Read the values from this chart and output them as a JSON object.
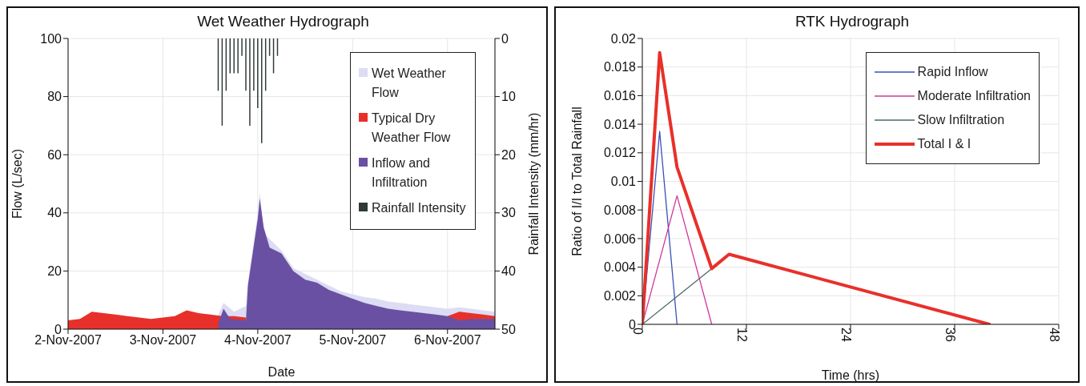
{
  "chart_data": [
    {
      "type": "area",
      "title": "Wet Weather Hydrograph",
      "xlabel": "Date",
      "ylabel": "Flow (L/sec)",
      "y2label": "Rainfall Intensity (mm/hr)",
      "xlim": [
        "2007-11-02T00:00",
        "2007-11-06T12:00"
      ],
      "xticks": [
        {
          "value": "2007-11-02",
          "label": "2-Nov-2007"
        },
        {
          "value": "2007-11-03",
          "label": "3-Nov-2007"
        },
        {
          "value": "2007-11-04",
          "label": "4-Nov-2007"
        },
        {
          "value": "2007-11-05",
          "label": "5-Nov-2007"
        },
        {
          "value": "2007-11-06",
          "label": "6-Nov-2007"
        }
      ],
      "ylim": [
        0,
        100
      ],
      "yticks": [
        0,
        20,
        40,
        60,
        80,
        100
      ],
      "y2lim": [
        50,
        0
      ],
      "y2ticks": [
        0,
        10,
        20,
        30,
        40,
        50
      ],
      "grid": true,
      "legend": "top right",
      "series": [
        {
          "name": "Wet Weather Flow",
          "color": "#dcdcf4",
          "x": [
            "2007-11-03T14:00",
            "2007-11-03T15:20",
            "2007-11-03T18:00",
            "2007-11-03T21:00",
            "2007-11-03T21:30",
            "2007-11-04T00:00",
            "2007-11-04T00:30",
            "2007-11-04T01:30",
            "2007-11-04T03:00",
            "2007-11-04T06:00",
            "2007-11-04T09:00",
            "2007-11-04T12:00",
            "2007-11-04T15:00",
            "2007-11-04T18:00",
            "2007-11-04T21:00",
            "2007-11-05T00:00",
            "2007-11-05T03:00",
            "2007-11-05T06:00",
            "2007-11-05T09:00",
            "2007-11-05T12:00",
            "2007-11-05T15:00",
            "2007-11-05T18:00",
            "2007-11-05T21:00",
            "2007-11-06T00:00",
            "2007-11-06T03:00",
            "2007-11-06T06:00",
            "2007-11-06T09:00",
            "2007-11-06T12:00"
          ],
          "values": [
            5,
            9,
            6,
            8,
            16,
            40,
            47,
            33,
            31,
            27,
            21,
            19,
            17,
            15,
            13,
            12,
            11,
            10.5,
            9.5,
            9,
            8.5,
            8,
            7.5,
            7,
            7.5,
            7,
            6.5,
            6
          ]
        },
        {
          "name": "Typical Dry Weather Flow",
          "color": "#e8302a",
          "x": [
            "2007-11-02T00:00",
            "2007-11-02T03:00",
            "2007-11-02T06:00",
            "2007-11-02T09:00",
            "2007-11-02T12:00",
            "2007-11-02T15:00",
            "2007-11-02T18:00",
            "2007-11-02T21:00",
            "2007-11-03T00:00",
            "2007-11-03T03:00",
            "2007-11-03T06:00",
            "2007-11-03T09:00",
            "2007-11-03T12:00",
            "2007-11-03T15:00",
            "2007-11-03T18:00",
            "2007-11-03T21:00",
            "2007-11-04T00:00",
            "2007-11-05T21:00",
            "2007-11-06T00:00",
            "2007-11-06T03:00",
            "2007-11-06T06:00",
            "2007-11-06T09:00",
            "2007-11-06T12:00"
          ],
          "values": [
            3,
            3.5,
            6,
            5.5,
            5,
            4.5,
            4,
            3.5,
            4,
            4.5,
            6.5,
            5.5,
            5,
            4.5,
            4.5,
            4,
            null,
            null,
            4.5,
            6,
            5.5,
            5,
            4.5
          ]
        },
        {
          "name": "Inflow and Infiltration",
          "color": "#6a50a2",
          "x": [
            "2007-11-03T14:00",
            "2007-11-03T15:20",
            "2007-11-03T17:00",
            "2007-11-03T21:00",
            "2007-11-03T21:30",
            "2007-11-04T00:00",
            "2007-11-04T00:30",
            "2007-11-04T01:30",
            "2007-11-04T03:00",
            "2007-11-04T06:00",
            "2007-11-04T09:00",
            "2007-11-04T12:00",
            "2007-11-04T15:00",
            "2007-11-04T18:00",
            "2007-11-04T21:00",
            "2007-11-05T00:00",
            "2007-11-05T03:00",
            "2007-11-05T06:00",
            "2007-11-05T09:00",
            "2007-11-05T12:00",
            "2007-11-05T15:00",
            "2007-11-05T18:00",
            "2007-11-05T21:00",
            "2007-11-06T00:00",
            "2007-11-06T03:00",
            "2007-11-06T06:00",
            "2007-11-06T09:00",
            "2007-11-06T12:00"
          ],
          "values": [
            2,
            7,
            3.5,
            3,
            15,
            38,
            45,
            35,
            28,
            26,
            20,
            17,
            16,
            13.5,
            12,
            10.5,
            9,
            8,
            7,
            6.5,
            6,
            5.5,
            5,
            4.5,
            3,
            3.5,
            3.5,
            3.5
          ]
        },
        {
          "name": "Rainfall Intensity",
          "type": "bar",
          "axis": "y2",
          "color": "#2f3a36",
          "x": [
            "2007-11-03T14:00",
            "2007-11-03T15:00",
            "2007-11-03T16:00",
            "2007-11-03T17:00",
            "2007-11-03T18:00",
            "2007-11-03T19:00",
            "2007-11-03T20:00",
            "2007-11-03T21:00",
            "2007-11-03T22:00",
            "2007-11-03T23:00",
            "2007-11-04T00:00",
            "2007-11-04T01:00",
            "2007-11-04T02:00",
            "2007-11-04T03:00",
            "2007-11-04T04:00",
            "2007-11-04T05:00"
          ],
          "values": [
            9,
            15,
            9,
            6,
            6,
            6,
            3,
            9,
            15,
            9,
            12,
            18,
            9,
            3,
            6,
            3
          ]
        }
      ]
    },
    {
      "type": "line",
      "title": "RTK Hydrograph",
      "xlabel": "Time (hrs)",
      "ylabel": "Ratio of I/I to Total Rainfall",
      "xlim": [
        0,
        48
      ],
      "xticks": [
        0,
        12,
        24,
        36,
        48
      ],
      "ylim": [
        0,
        0.02
      ],
      "yticks": [
        0,
        0.002,
        0.004,
        0.006,
        0.008,
        0.01,
        0.012,
        0.014,
        0.016,
        0.018,
        0.02
      ],
      "grid": true,
      "legend": "top right",
      "marker": "none",
      "line_style": "solid",
      "series": [
        {
          "name": "Rapid Inflow",
          "color": "#3a4fb8",
          "x": [
            0,
            2,
            4
          ],
          "values": [
            0,
            0.0135,
            0
          ]
        },
        {
          "name": "Moderate Infiltration",
          "color": "#d0389a",
          "x": [
            0,
            4,
            8
          ],
          "values": [
            0,
            0.009,
            0
          ]
        },
        {
          "name": "Slow Infiltration",
          "color": "#4a6a6a",
          "x": [
            0,
            8
          ],
          "values": [
            0,
            0.0039
          ]
        },
        {
          "name": "Total I & I",
          "color": "#e8302a",
          "x": [
            0,
            2,
            4,
            8,
            10,
            40
          ],
          "values": [
            0,
            0.019,
            0.011,
            0.0039,
            0.0049,
            0
          ]
        }
      ]
    }
  ]
}
